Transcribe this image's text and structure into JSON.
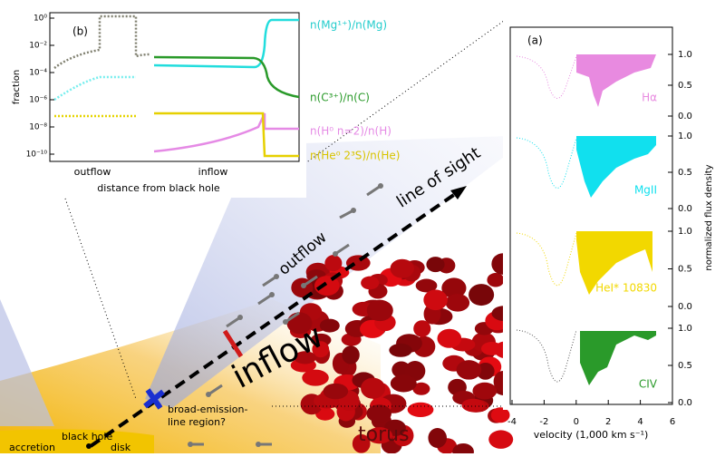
{
  "diagram": {
    "line_of_sight": "line of sight",
    "outflow": "outflow",
    "inflow": "inflow",
    "blr_1": "broad-emission-",
    "blr_2": "line region?",
    "torus": "torus",
    "black_hole": "black hole",
    "accretion": "accretion",
    "disk": "disk"
  },
  "panel_b": {
    "label": "(b)",
    "y_axis_label": "fraction",
    "x_axis_label": "distance from black hole",
    "x_regions": [
      "outflow",
      "inflow"
    ],
    "yticks": [
      "10⁰",
      "10⁻²",
      "10⁻⁴",
      "10⁻⁶",
      "10⁻⁸",
      "10⁻¹⁰"
    ],
    "curve_labels": [
      "n(Mg¹⁺)/n(Mg)",
      "n(C³⁺)/n(C)",
      "n(H⁰ n=2)/n(H)",
      "n(He⁰ 2³S)/n(He)"
    ]
  },
  "panel_a": {
    "label": "(a)",
    "x_axis_label": "velocity (1,000 km s⁻¹)",
    "y_axis_label": "normalized flux density",
    "xticks": [
      "-4",
      "-2",
      "0",
      "2",
      "4",
      "6"
    ],
    "yticks": [
      "0.0",
      "0.5",
      "1.0"
    ],
    "lines": [
      "Hα",
      "MgII",
      "HeI* 10830",
      "CIV"
    ]
  }
}
